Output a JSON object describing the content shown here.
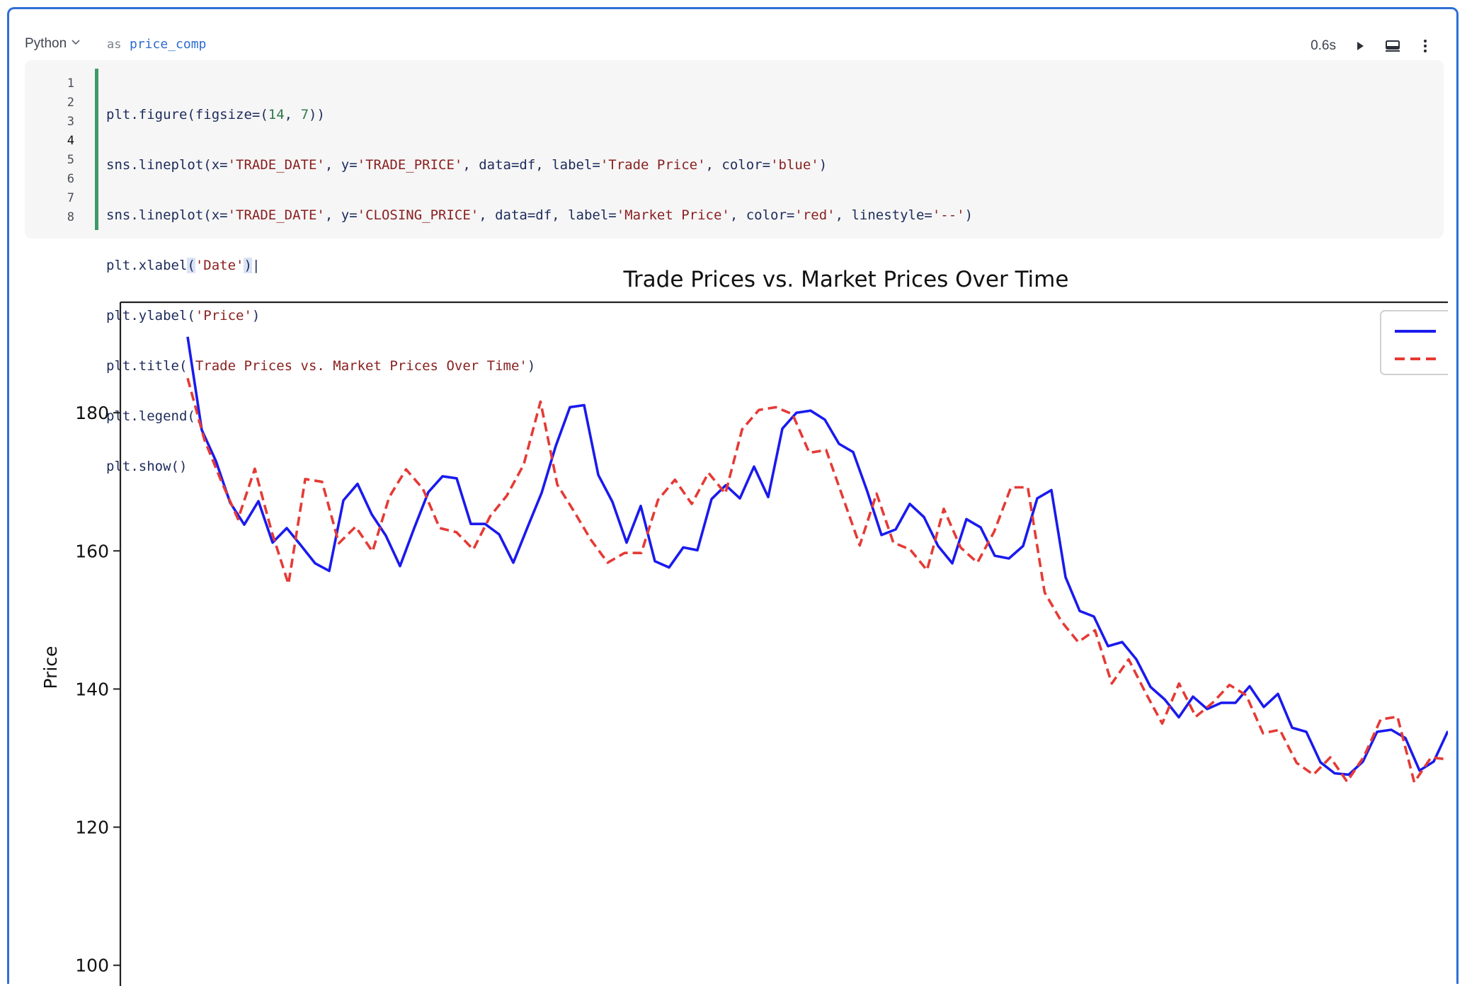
{
  "cell": {
    "language": "Python",
    "as_label": "as",
    "variable": "price_comp",
    "duration": "0.6s",
    "icons": [
      "chevron-down-icon",
      "run-icon",
      "display-icon",
      "more-vertical-icon"
    ]
  },
  "code": {
    "line_numbers": [
      "1",
      "2",
      "3",
      "4",
      "5",
      "6",
      "7",
      "8"
    ],
    "active_line": "4"
  },
  "chart_data": {
    "type": "line",
    "title": "Trade Prices vs. Market Prices Over Time",
    "ylabel": "Price",
    "xlabel": "",
    "ylim": [
      97,
      196
    ],
    "yticks": [
      "100",
      "120",
      "140",
      "160",
      "180"
    ],
    "grid": false,
    "legend": "top-right (labels cut off)",
    "series": [
      {
        "color": "#1a1aee",
        "style": "solid",
        "values": [
          191,
          177.5,
          173,
          167,
          163.8,
          167.2,
          161.2,
          163.3,
          160.8,
          158.2,
          157.1,
          167.3,
          169.7,
          165.3,
          162.2,
          157.8,
          163.3,
          168.5,
          170.8,
          170.5,
          163.9,
          163.9,
          162.4,
          158.3,
          163.4,
          168.4,
          175.2,
          180.8,
          181.1,
          171,
          167.1,
          161.2,
          166.5,
          158.5,
          157.6,
          160.5,
          160.1,
          167.5,
          169.5,
          167.6,
          172.2,
          167.8,
          177.7,
          180,
          180.3,
          179,
          175.5,
          174.3,
          168.6,
          162.3,
          163.1,
          166.8,
          164.9,
          160.7,
          158.2,
          164.6,
          163.4,
          159.3,
          158.9,
          160.7,
          167.6,
          168.8,
          156.2,
          151.3,
          150.5,
          146.2,
          146.8,
          144.3,
          140.3,
          138.5,
          135.9,
          138.9,
          137.1,
          138,
          138,
          140.4,
          137.4,
          139.3,
          134.4,
          133.8,
          129.4,
          127.8,
          127.6,
          129.5,
          133.8,
          134.1,
          132.9,
          128.2,
          129.5,
          133.9
        ]
      },
      {
        "color": "#e53a35",
        "style": "dashed",
        "values": [
          185,
          176.1,
          170.1,
          164.6,
          171.9,
          162.8,
          155.2,
          170.4,
          170,
          161.1,
          163.5,
          159.9,
          167.8,
          171.8,
          169,
          163.3,
          162.7,
          160.2,
          165,
          168,
          172.5,
          181.6,
          169.6,
          165.7,
          161.6,
          158.3,
          159.7,
          159.7,
          167.4,
          170.3,
          166.8,
          171.3,
          168.3,
          177.6,
          180.4,
          180.8,
          179.8,
          174.2,
          174.6,
          167.7,
          160.8,
          168.3,
          161.2,
          160.2,
          157.2,
          166.1,
          160.5,
          158.3,
          162.8,
          169.2,
          169.2,
          154,
          149.8,
          146.8,
          148.5,
          140.8,
          144.3,
          139.5,
          135,
          140.8,
          136,
          138,
          140.6,
          139.1,
          133.6,
          134.1,
          129.3,
          127.6,
          130.1,
          126.6,
          130.2,
          135.6,
          136,
          126.5,
          130.1,
          129.8
        ]
      }
    ]
  }
}
